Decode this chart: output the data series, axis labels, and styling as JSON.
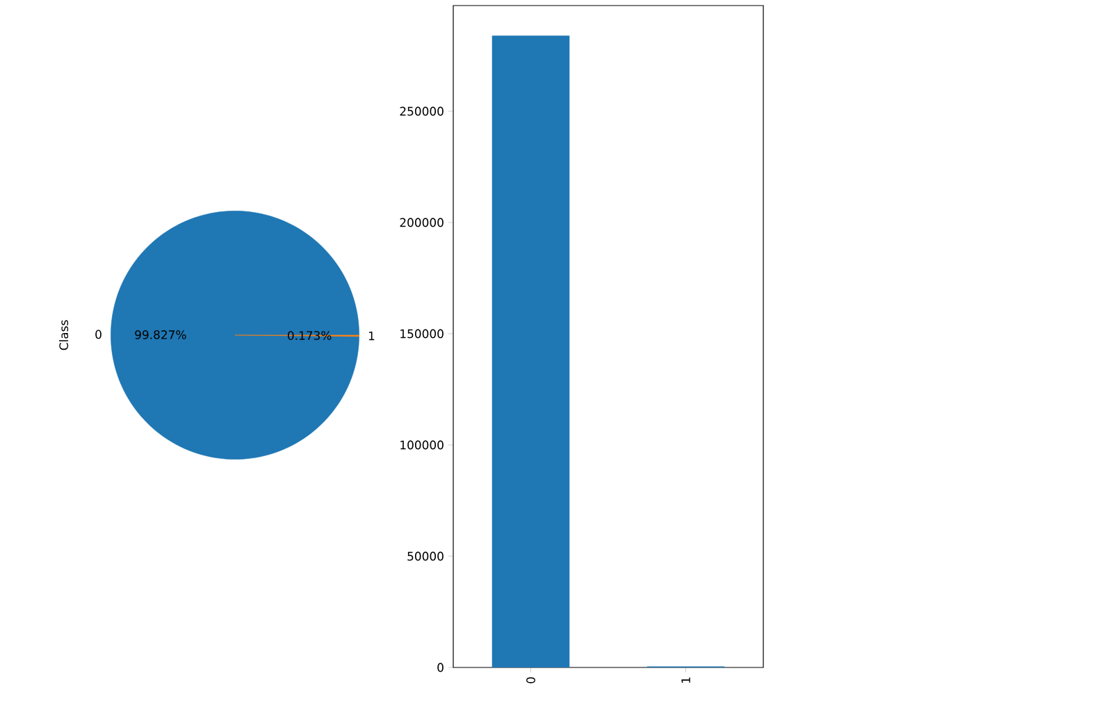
{
  "chart_data": [
    {
      "type": "pie",
      "ylabel": "Class",
      "categories": [
        "0",
        "1"
      ],
      "values": [
        99.827,
        0.173
      ],
      "colors": [
        "#1f77b4",
        "#ff7f0e"
      ],
      "value_labels": [
        "99.827%",
        "0.173%"
      ]
    },
    {
      "type": "bar",
      "categories": [
        "0",
        "1"
      ],
      "values": [
        284000,
        500
      ],
      "color": "#1f77b4",
      "ylim": [
        0,
        297500
      ],
      "yticks": [
        0,
        50000,
        100000,
        150000,
        200000,
        250000
      ]
    }
  ]
}
